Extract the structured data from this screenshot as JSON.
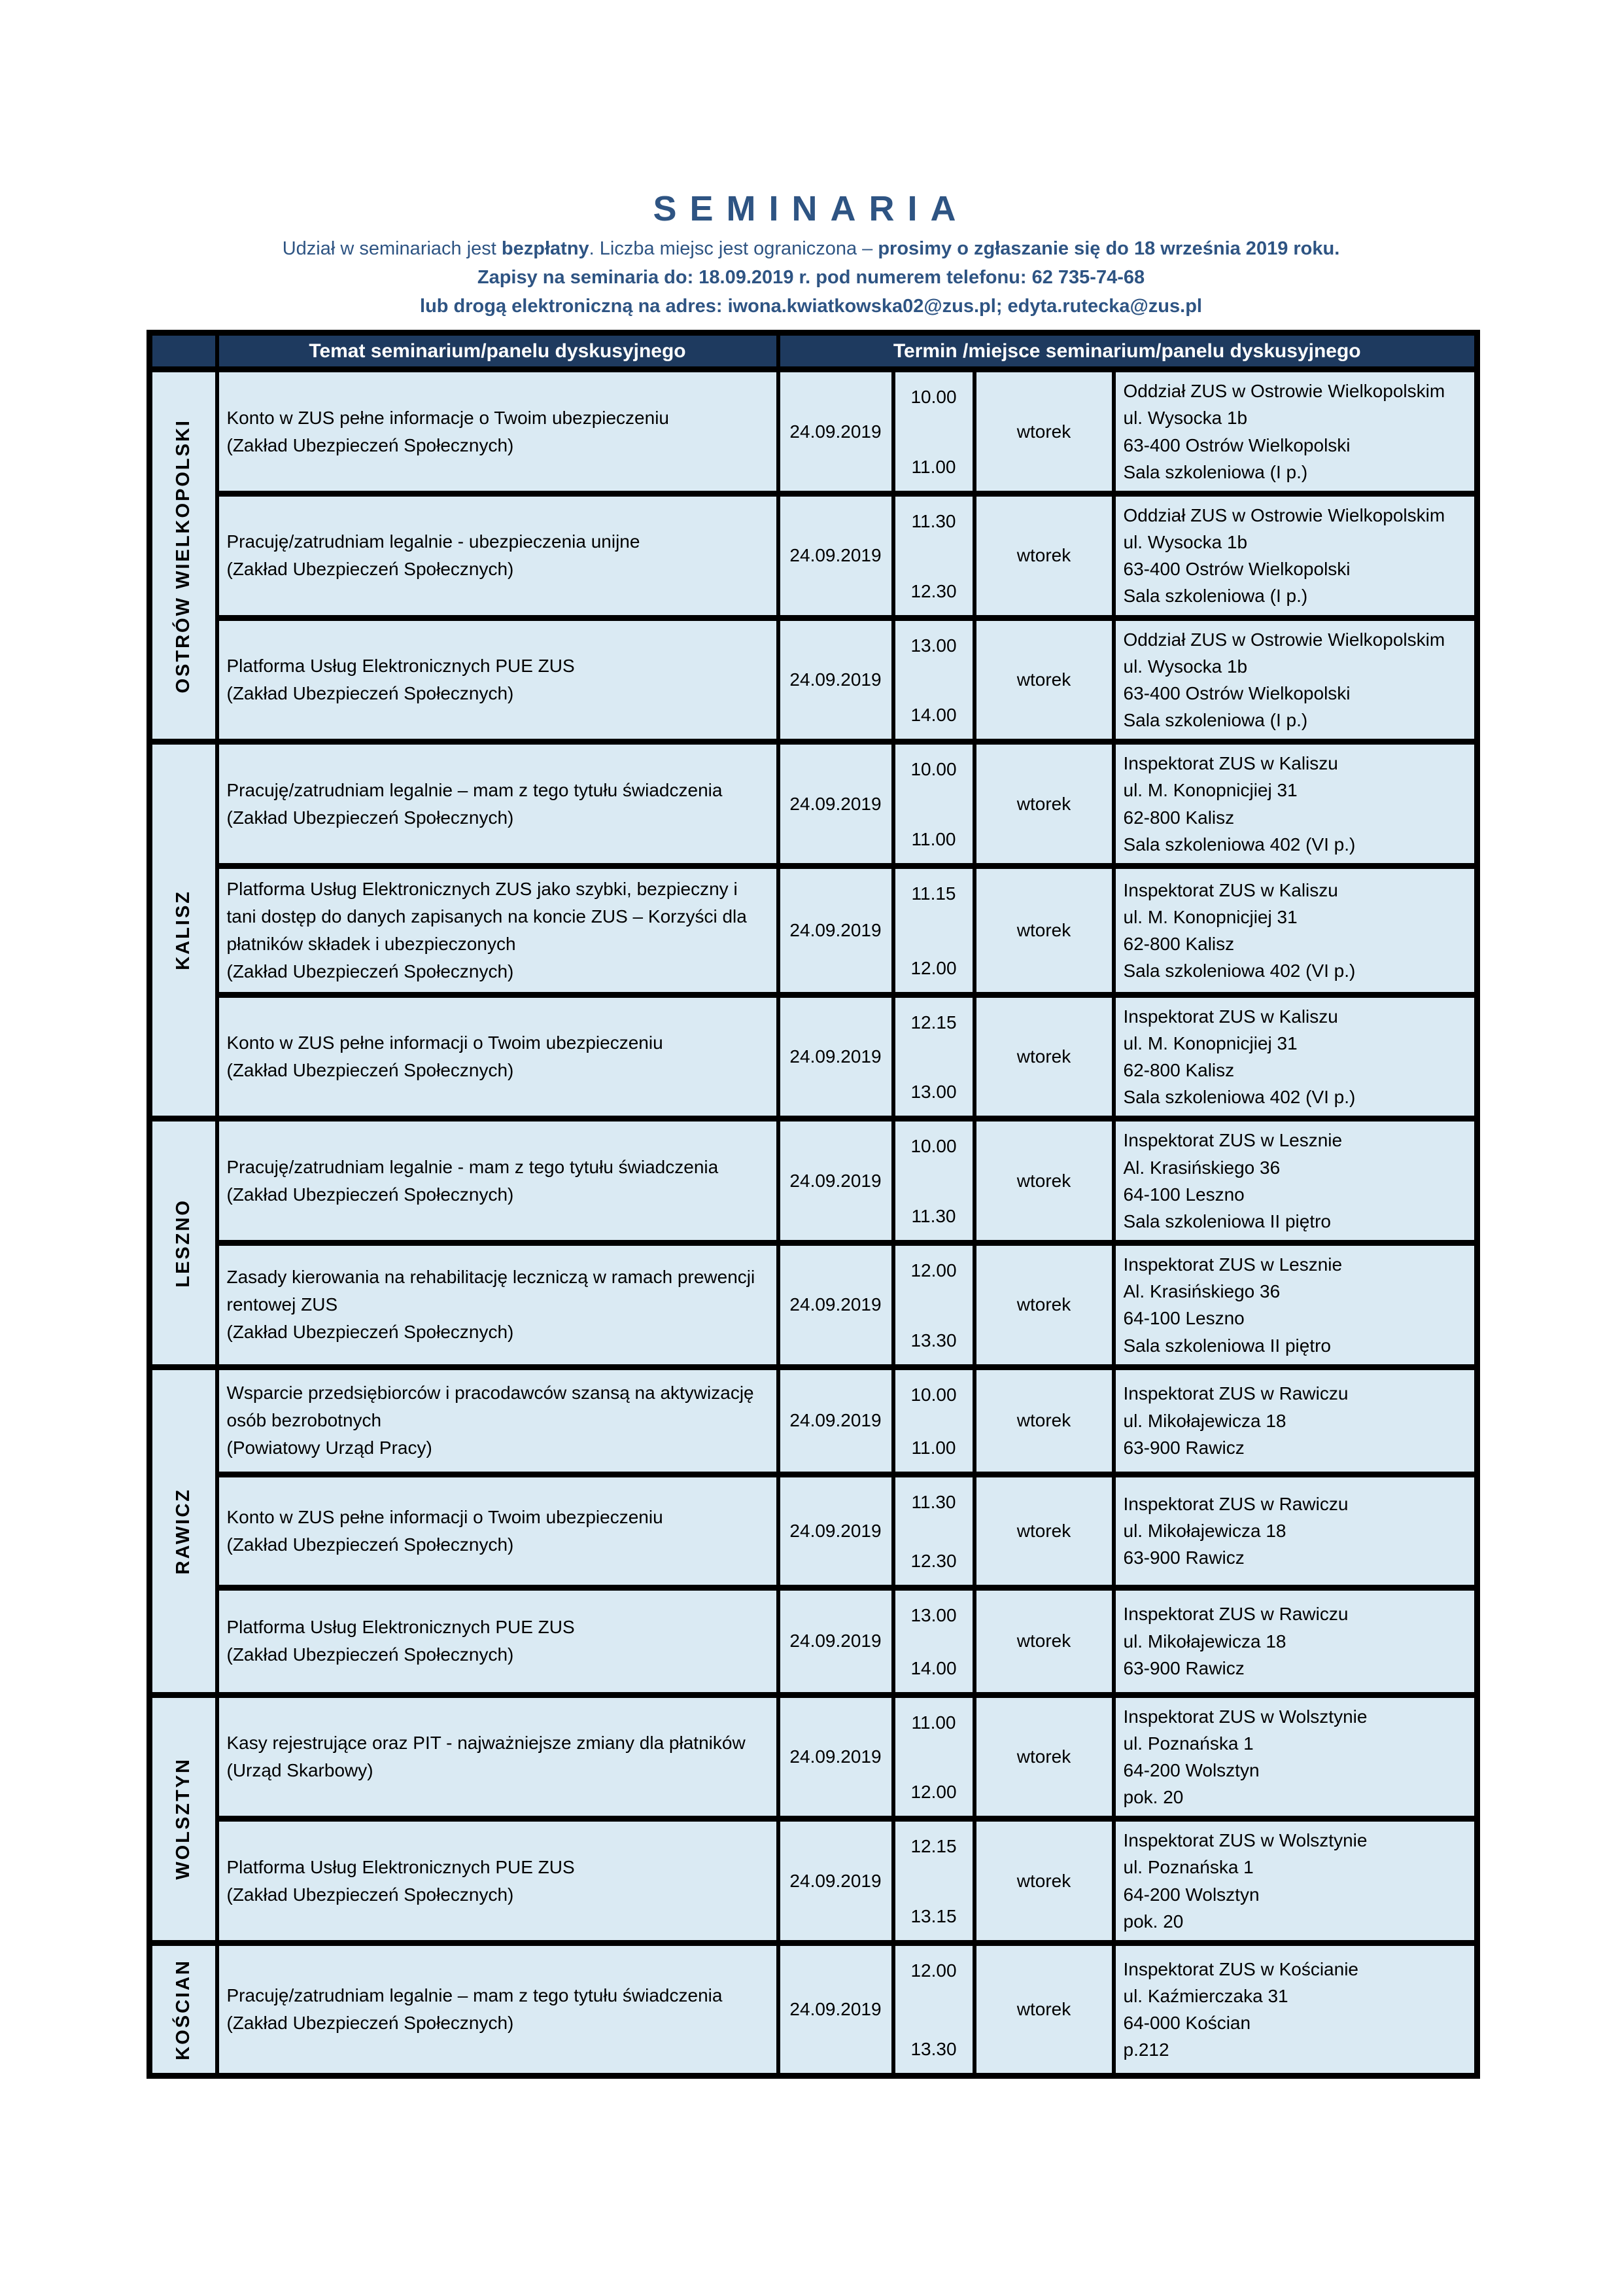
{
  "colors": {
    "title_blue": "#2e5483",
    "header_bg": "#1e3a5f",
    "header_text": "#ffffff",
    "cell_bg": "#daeaf3",
    "border_black": "#000000"
  },
  "page": {
    "title": "SEMINARIA"
  },
  "intro": {
    "l1_a": "Udział w seminariach jest ",
    "l1_b": "bezpłatny",
    "l1_c": ". Liczba miejsc jest ograniczona – ",
    "l1_d": "prosimy o zgłaszanie się do 18 września 2019 roku.",
    "l2": "Zapisy na seminaria do: 18.09.2019 r. pod numerem telefonu: 62 735-74-68",
    "l3": "lub drogą elektroniczną na adres: iwona.kwiatkowska02@zus.pl; edyta.rutecka@zus.pl"
  },
  "table": {
    "col_headers": {
      "topic": "Temat seminarium/panelu dyskusyjnego",
      "termin": "Termin /miejsce seminarium/panelu dyskusyjnego"
    },
    "groups": [
      {
        "region": "OSTRÓW WIELKOPOLSKI",
        "rows": [
          {
            "topic_title": "Konto w ZUS pełne informacje o Twoim ubezpieczeniu",
            "topic_org": "(Zakład Ubezpieczeń Społecznych)",
            "date": "24.09.2019",
            "time_start": "10.00",
            "time_end": "11.00",
            "day": "wtorek",
            "location_lines": [
              "Oddział ZUS w Ostrowie Wielkopolskim",
              "ul. Wysocka 1b",
              "63-400 Ostrów Wielkopolski",
              "Sala szkoleniowa (I p.)"
            ]
          },
          {
            "topic_title": "Pracuję/zatrudniam legalnie - ubezpieczenia unijne",
            "topic_org": "(Zakład Ubezpieczeń Społecznych)",
            "date": "24.09.2019",
            "time_start": "11.30",
            "time_end": "12.30",
            "day": "wtorek",
            "location_lines": [
              "Oddział ZUS w Ostrowie Wielkopolskim",
              "ul. Wysocka 1b",
              "63-400 Ostrów Wielkopolski",
              "Sala szkoleniowa (I p.)"
            ]
          },
          {
            "topic_title": "Platforma Usług Elektronicznych PUE ZUS",
            "topic_org": "(Zakład Ubezpieczeń Społecznych)",
            "date": "24.09.2019",
            "time_start": "13.00",
            "time_end": "14.00",
            "day": "wtorek",
            "location_lines": [
              "Oddział ZUS w Ostrowie Wielkopolskim",
              "ul. Wysocka 1b",
              "63-400 Ostrów Wielkopolski",
              "Sala szkoleniowa (I p.)"
            ]
          }
        ]
      },
      {
        "region": "KALISZ",
        "rows": [
          {
            "topic_title": "Pracuję/zatrudniam legalnie – mam z tego tytułu świadczenia",
            "topic_org": "(Zakład Ubezpieczeń Społecznych)",
            "date": "24.09.2019",
            "time_start": "10.00",
            "time_end": "11.00",
            "day": "wtorek",
            "location_lines": [
              "Inspektorat ZUS w Kaliszu",
              "ul. M. Konopnicjiej 31",
              "62-800 Kalisz",
              "Sala szkoleniowa 402 (VI p.)"
            ]
          },
          {
            "topic_title": "Platforma Usług Elektronicznych ZUS jako szybki, bezpieczny i tani dostęp do danych zapisanych na koncie ZUS – Korzyści dla płatników składek i ubezpieczonych",
            "topic_org": "(Zakład Ubezpieczeń Społecznych)",
            "date": "24.09.2019",
            "time_start": "11.15",
            "time_end": "12.00",
            "day": "wtorek",
            "location_lines": [
              "Inspektorat ZUS w Kaliszu",
              "ul. M. Konopnicjiej 31",
              "62-800 Kalisz",
              "Sala szkoleniowa 402 (VI p.)"
            ]
          },
          {
            "topic_title": "Konto w ZUS pełne informacji o Twoim ubezpieczeniu",
            "topic_org": "(Zakład Ubezpieczeń Społecznych)",
            "date": "24.09.2019",
            "time_start": "12.15",
            "time_end": "13.00",
            "day": "wtorek",
            "location_lines": [
              "Inspektorat ZUS w Kaliszu",
              "ul. M. Konopnicjiej 31",
              "62-800 Kalisz",
              "Sala szkoleniowa 402 (VI p.)"
            ]
          }
        ]
      },
      {
        "region": "LESZNO",
        "rows": [
          {
            "topic_title": "Pracuję/zatrudniam legalnie - mam z tego tytułu świadczenia",
            "topic_org": "(Zakład Ubezpieczeń Społecznych)",
            "date": "24.09.2019",
            "time_start": "10.00",
            "time_end": "11.30",
            "day": "wtorek",
            "location_lines": [
              "Inspektorat ZUS w Lesznie",
              "Al. Krasińskiego 36",
              "64-100 Leszno",
              "Sala szkoleniowa II piętro"
            ]
          },
          {
            "topic_title": "Zasady kierowania na rehabilitację leczniczą w ramach prewencji rentowej ZUS",
            "topic_org": "(Zakład Ubezpieczeń Społecznych)",
            "date": "24.09.2019",
            "time_start": "12.00",
            "time_end": "13.30",
            "day": "wtorek",
            "location_lines": [
              "Inspektorat ZUS w Lesznie",
              "Al. Krasińskiego 36",
              "64-100 Leszno",
              "Sala szkoleniowa II piętro"
            ]
          }
        ]
      },
      {
        "region": "RAWICZ",
        "rows": [
          {
            "topic_title": "Wsparcie przedsiębiorców i pracodawców szansą na aktywizację osób bezrobotnych",
            "topic_org": "(Powiatowy Urząd Pracy)",
            "date": "24.09.2019",
            "time_start": "10.00",
            "time_end": "11.00",
            "day": "wtorek",
            "location_lines": [
              "Inspektorat ZUS w Rawiczu",
              "ul. Mikołajewicza 18",
              "63-900 Rawicz"
            ]
          },
          {
            "topic_title": "Konto w ZUS pełne informacji o Twoim ubezpieczeniu",
            "topic_org": "(Zakład Ubezpieczeń Społecznych)",
            "date": "24.09.2019",
            "time_start": "11.30",
            "time_end": "12.30",
            "day": "wtorek",
            "location_lines": [
              "Inspektorat ZUS w Rawiczu",
              "ul. Mikołajewicza 18",
              "63-900 Rawicz"
            ]
          },
          {
            "topic_title": "Platforma Usług Elektronicznych PUE ZUS",
            "topic_org": "(Zakład Ubezpieczeń Społecznych)",
            "date": "24.09.2019",
            "time_start": "13.00",
            "time_end": "14.00",
            "day": "wtorek",
            "location_lines": [
              "Inspektorat ZUS w Rawiczu",
              "ul. Mikołajewicza 18",
              "63-900 Rawicz"
            ]
          }
        ]
      },
      {
        "region": "WOLSZTYN",
        "rows": [
          {
            "topic_title": "Kasy rejestrujące oraz PIT - najważniejsze zmiany dla płatników",
            "topic_org": "(Urząd Skarbowy)",
            "date": "24.09.2019",
            "time_start": "11.00",
            "time_end": "12.00",
            "day": "wtorek",
            "location_lines": [
              "Inspektorat ZUS w Wolsztynie",
              "ul. Poznańska 1",
              "64-200 Wolsztyn",
              "pok. 20"
            ]
          },
          {
            "topic_title": "Platforma Usług Elektronicznych PUE ZUS",
            "topic_org": "(Zakład Ubezpieczeń Społecznych)",
            "date": "24.09.2019",
            "time_start": "12.15",
            "time_end": "13.15",
            "day": "wtorek",
            "location_lines": [
              "Inspektorat ZUS w Wolsztynie",
              "ul. Poznańska 1",
              "64-200 Wolsztyn",
              "pok. 20"
            ]
          }
        ]
      },
      {
        "region": "KOŚCIAN",
        "rows": [
          {
            "topic_title": "Pracuję/zatrudniam legalnie – mam z tego tytułu świadczenia",
            "topic_org": "(Zakład Ubezpieczeń Społecznych)",
            "date": "24.09.2019",
            "time_start": "12.00",
            "time_end": "13.30",
            "day": "wtorek",
            "location_lines": [
              "Inspektorat ZUS w Kościanie",
              "ul. Kaźmierczaka 31",
              "64-000 Kościan",
              "p.212"
            ]
          }
        ]
      }
    ]
  }
}
